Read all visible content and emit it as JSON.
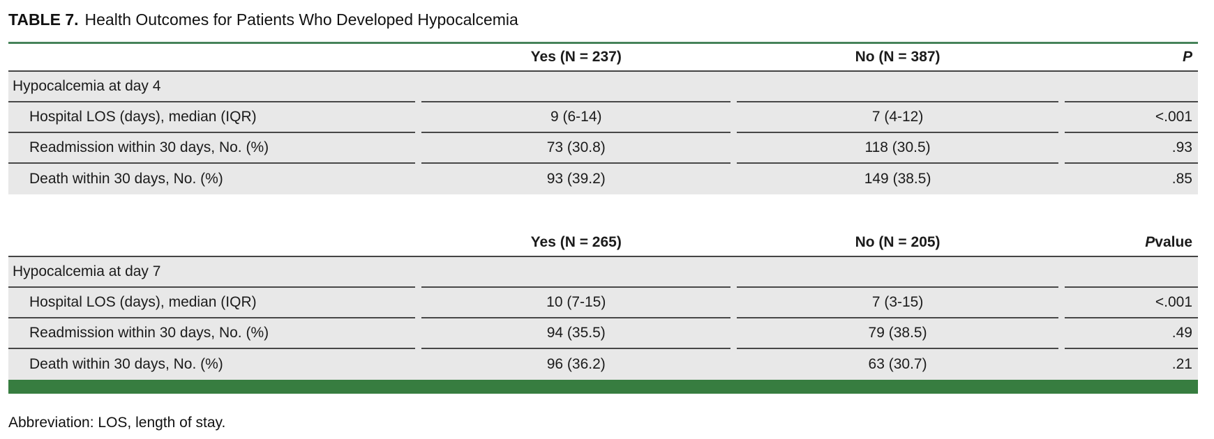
{
  "page": {
    "title_label": "TABLE 7.",
    "title_text": "Health Outcomes for Patients Who Developed Hypocalcemia",
    "footer": "Abbreviation: LOS, length of stay."
  },
  "colors": {
    "accent_green_bar": "#377D40",
    "accent_green_rule": "#46835A",
    "row_background": "#E8E8E8",
    "rule_dark": "#474747"
  },
  "sections": [
    {
      "header": {
        "yes": "Yes (N = 237)",
        "no": "No (N = 387)",
        "p_italic": "P",
        "p_rest": ""
      },
      "group_label": "Hypocalcemia at day 4",
      "rows": [
        {
          "label": "Hospital LOS (days), median (IQR)",
          "yes": "9 (6-14)",
          "no": "7 (4-12)",
          "p": "<.001"
        },
        {
          "label": "Readmission within 30 days, No. (%)",
          "yes": "73 (30.8)",
          "no": "118 (30.5)",
          "p": ".93"
        },
        {
          "label": "Death within 30 days, No. (%)",
          "yes": "93 (39.2)",
          "no": "149 (38.5)",
          "p": ".85"
        }
      ]
    },
    {
      "header": {
        "yes": "Yes (N = 265)",
        "no": "No (N = 205)",
        "p_italic": "P",
        "p_rest": " value"
      },
      "group_label": "Hypocalcemia at day 7",
      "rows": [
        {
          "label": "Hospital LOS (days), median (IQR)",
          "yes": "10 (7-15)",
          "no": "7 (3-15)",
          "p": "<.001"
        },
        {
          "label": "Readmission within 30 days, No. (%)",
          "yes": "94 (35.5)",
          "no": "79 (38.5)",
          "p": ".49"
        },
        {
          "label": "Death within 30 days, No. (%)",
          "yes": "96 (36.2)",
          "no": "63 (30.7)",
          "p": ".21"
        }
      ]
    }
  ]
}
